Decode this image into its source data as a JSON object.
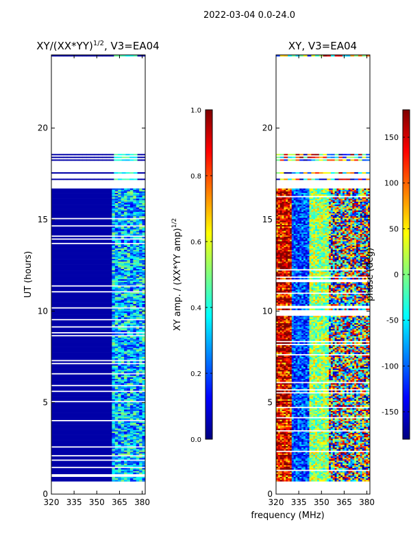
{
  "suptitle": "2022-03-04 0.0-24.0",
  "colors": {
    "axis": "#000000",
    "background": "#ffffff",
    "nodata": "#ffffff",
    "jet_stops": [
      "#00007f",
      "#0000ff",
      "#007fff",
      "#00ffff",
      "#7fff7f",
      "#ffff00",
      "#ff7f00",
      "#ff0000",
      "#7f0000"
    ]
  },
  "chart_data": [
    {
      "type": "heatmap",
      "title_prefix": "XY/(XX*YY)",
      "title_exp": "1/2",
      "title_suffix": ", V3=EA04",
      "xlabel": "",
      "ylabel": "UT (hours)",
      "xlim": [
        320,
        382
      ],
      "ylim": [
        0,
        24
      ],
      "xticks": [
        320,
        335,
        350,
        365,
        380
      ],
      "yticks": [
        0,
        5,
        10,
        15,
        20
      ],
      "colorbar": {
        "label_prefix": "XY amp. / (XX*YY amp)",
        "label_exp": "1/2",
        "range": [
          0.0,
          1.0
        ],
        "ticks": [
          "0.0",
          "0.2",
          "0.4",
          "0.6",
          "0.8",
          "1.0"
        ],
        "tick_values": [
          0.0,
          0.2,
          0.4,
          0.6,
          0.8,
          1.0
        ]
      },
      "data_extent_hours": [
        0.7,
        16.7
      ],
      "sparse_scans_hours": [
        17.2,
        17.55,
        18.25,
        18.4,
        18.55,
        23.95
      ],
      "bright_band_mhz": [
        360,
        382
      ]
    },
    {
      "type": "heatmap",
      "title": "XY, V3=EA04",
      "xlabel": "frequency (MHz)",
      "ylabel": "",
      "xlim": [
        320,
        382
      ],
      "ylim": [
        0,
        24
      ],
      "xticks": [
        320,
        335,
        350,
        365,
        380
      ],
      "yticks": [
        0,
        5,
        10,
        15,
        20
      ],
      "colorbar": {
        "label": "phase (deg)",
        "range": [
          -180,
          180
        ],
        "ticks": [
          "-150",
          "-100",
          "-50",
          "0",
          "50",
          "100",
          "150"
        ],
        "tick_values": [
          -150,
          -100,
          -50,
          0,
          50,
          100,
          150
        ]
      },
      "data_extent_hours": [
        0.7,
        16.7
      ],
      "sparse_scans_hours": [
        17.2,
        17.55,
        18.25,
        18.4,
        18.55,
        23.95
      ]
    }
  ]
}
